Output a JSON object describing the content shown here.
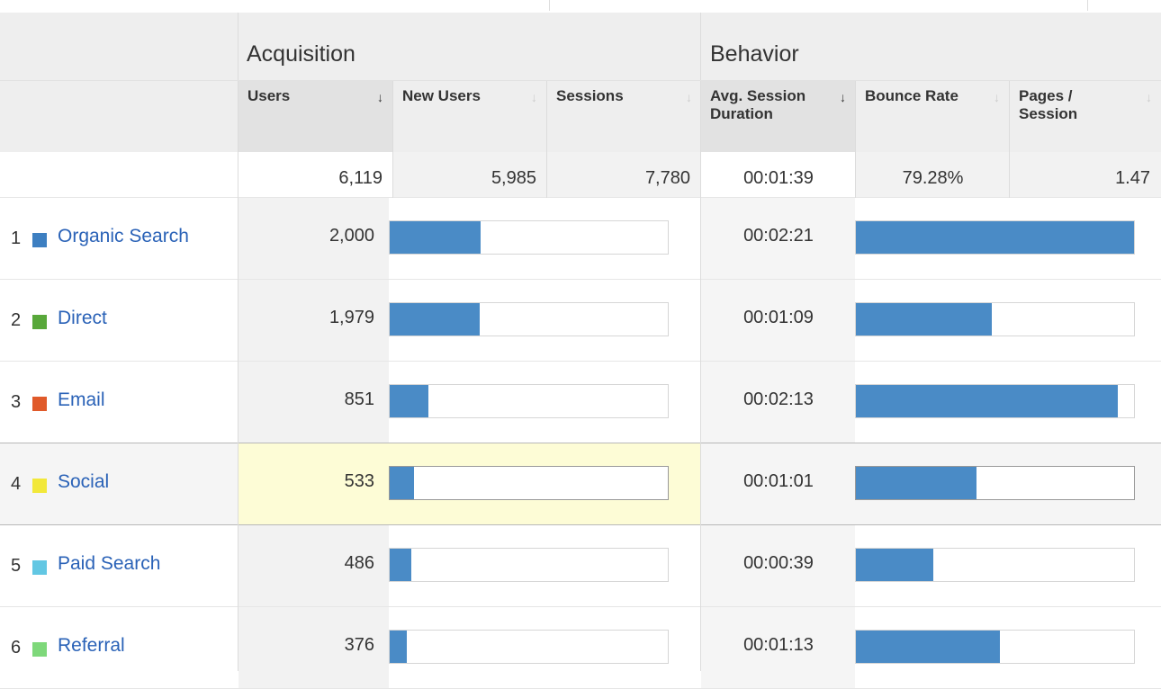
{
  "header": {
    "acquisition_title": "Acquisition",
    "behavior_title": "Behavior",
    "columns": [
      {
        "label": "Users",
        "sort_icon": "↓"
      },
      {
        "label": "New Users",
        "sort_icon": "↓"
      },
      {
        "label": "Sessions",
        "sort_icon": "↓"
      },
      {
        "label": "Avg. Session Duration",
        "sort_icon": "↓"
      },
      {
        "label": "Bounce Rate",
        "sort_icon": "↓"
      },
      {
        "label": "Pages / Session",
        "sort_icon": "↓"
      }
    ]
  },
  "totals": {
    "users": "6,119",
    "new_users": "5,985",
    "sessions": "7,780",
    "avg_session_duration": "00:01:39",
    "bounce_rate": "79.28%",
    "pages_per_session": "1.47"
  },
  "rows": [
    {
      "rank": "1",
      "channel": "Organic Search",
      "color": "#3d7fc1",
      "users": "2,000",
      "users_pct": 0.327,
      "duration": "00:02:21",
      "duration_pct": 1.0
    },
    {
      "rank": "2",
      "channel": "Direct",
      "color": "#58a83a",
      "users": "1,979",
      "users_pct": 0.323,
      "duration": "00:01:09",
      "duration_pct": 0.489
    },
    {
      "rank": "3",
      "channel": "Email",
      "color": "#e05a2a",
      "users": "851",
      "users_pct": 0.139,
      "duration": "00:02:13",
      "duration_pct": 0.943
    },
    {
      "rank": "4",
      "channel": "Social",
      "color": "#f2e83a",
      "users": "533",
      "users_pct": 0.087,
      "duration": "00:01:01",
      "duration_pct": 0.433
    },
    {
      "rank": "5",
      "channel": "Paid Search",
      "color": "#62c7e3",
      "users": "486",
      "users_pct": 0.079,
      "duration": "00:00:39",
      "duration_pct": 0.277
    },
    {
      "rank": "6",
      "channel": "Referral",
      "color": "#7ed87a",
      "users": "376",
      "users_pct": 0.061,
      "duration": "00:01:13",
      "duration_pct": 0.518
    }
  ],
  "colors": {
    "bar": "#4a8bc6",
    "link": "#2a62b7",
    "highlight": "#fdfcd6"
  }
}
